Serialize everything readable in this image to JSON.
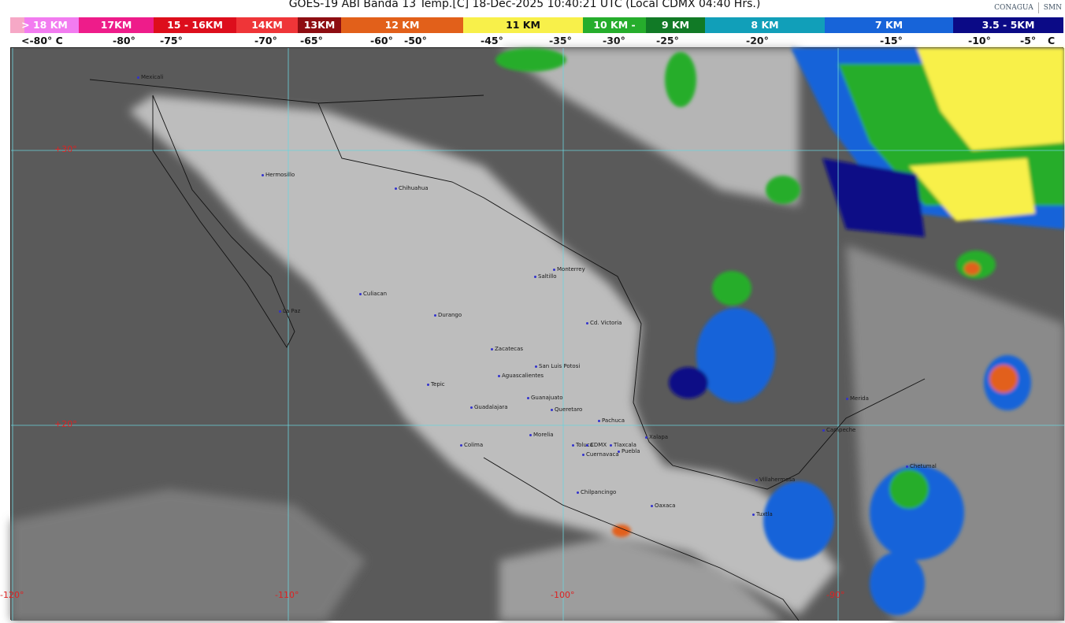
{
  "title": "GOES-19 ABI Banda 13 Temp.[C] 18-Dec-2025 10:40:21 UTC (Local CDMX  04:40 Hrs.)",
  "logos": [
    "CONAGUA",
    "SMN"
  ],
  "legend": {
    "bands": [
      {
        "label": "> 18 KM",
        "color": "#f27cf0"
      },
      {
        "label": "17KM",
        "color": "#ee1c8a"
      },
      {
        "label": "15 - 16KM",
        "color": "#dd0e1c"
      },
      {
        "label": "14KM",
        "color": "#ef3538"
      },
      {
        "label": "13KM",
        "color": "#8e0d12"
      },
      {
        "label": "12 KM",
        "color": "#e2601a"
      },
      {
        "label": "11 KM",
        "color": "#f8f04a"
      },
      {
        "label": "10 KM -",
        "color": "#26ad2c"
      },
      {
        "label": "9 KM",
        "color": "#117a26"
      },
      {
        "label": "8 KM",
        "color": "#119fb9"
      },
      {
        "label": "7 KM",
        "color": "#1764d9"
      },
      {
        "label": "3.5 - 5KM",
        "color": "#0b0a86"
      }
    ],
    "temps": [
      "<-80° C",
      "-80°",
      "-75°",
      "-70°",
      "-65°",
      "-60°",
      "-50°",
      "-45°",
      "-35°",
      "-30°",
      "-25°",
      "-20°",
      "-15°",
      "-10°",
      "-5°",
      "C"
    ]
  },
  "grid": {
    "lat": [
      "+30°",
      "+20°"
    ],
    "lon": [
      "-120°",
      "-110°",
      "-100°",
      "-90°"
    ]
  },
  "cities": [
    "Mexicali",
    "Hermosillo",
    "Chihuahua",
    "Saltillo",
    "Monterrey",
    "Culiacan",
    "La Paz",
    "Durango",
    "Cd. Victoria",
    "Zacatecas",
    "San Luis Potosi",
    "Aguascalientes",
    "Tepic",
    "Guanajuato",
    "Guadalajara",
    "Queretaro",
    "Pachuca",
    "Morelia",
    "Xalapa",
    "Colima",
    "Toluca",
    "CDMX",
    "Tlaxcala",
    "Cuernavaca",
    "Puebla",
    "Chilpancingo",
    "Oaxaca",
    "Villahermosa",
    "Tuxtla",
    "Merida",
    "Campeche",
    "Chetumal"
  ]
}
